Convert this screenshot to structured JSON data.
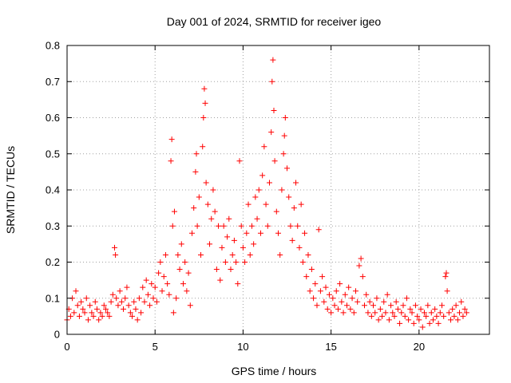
{
  "chart_data": {
    "type": "scatter",
    "title": "Day 001 of 2024, SRMTID for receiver igeo",
    "xlabel": "GPS time / hours",
    "ylabel": "SRMTID / TECUs",
    "xlim": [
      0,
      24
    ],
    "ylim": [
      0,
      0.8
    ],
    "x_ticks": [
      0,
      5,
      10,
      15,
      20
    ],
    "x_tick_labels": [
      "0",
      "5",
      "10",
      "15",
      "20"
    ],
    "y_ticks": [
      0,
      0.1,
      0.2,
      0.3,
      0.4,
      0.5,
      0.6,
      0.7,
      0.8
    ],
    "y_tick_labels": [
      "0",
      "0.1",
      "0.2",
      "0.3",
      "0.4",
      "0.5",
      "0.6",
      "0.7",
      "0.8"
    ],
    "grid": true,
    "marker": "plus",
    "series": [
      {
        "name": "SRMTID",
        "color": "#ff0000",
        "points": [
          [
            0.0,
            0.04
          ],
          [
            0.1,
            0.07
          ],
          [
            0.2,
            0.05
          ],
          [
            0.3,
            0.1
          ],
          [
            0.4,
            0.06
          ],
          [
            0.5,
            0.12
          ],
          [
            0.6,
            0.08
          ],
          [
            0.7,
            0.05
          ],
          [
            0.8,
            0.09
          ],
          [
            0.9,
            0.07
          ],
          [
            1.0,
            0.06
          ],
          [
            1.1,
            0.1
          ],
          [
            1.2,
            0.04
          ],
          [
            1.3,
            0.08
          ],
          [
            1.4,
            0.06
          ],
          [
            1.5,
            0.05
          ],
          [
            1.6,
            0.09
          ],
          [
            1.7,
            0.07
          ],
          [
            1.8,
            0.04
          ],
          [
            1.9,
            0.06
          ],
          [
            2.0,
            0.05
          ],
          [
            2.1,
            0.08
          ],
          [
            2.2,
            0.07
          ],
          [
            2.3,
            0.06
          ],
          [
            2.4,
            0.05
          ],
          [
            2.5,
            0.09
          ],
          [
            2.6,
            0.11
          ],
          [
            2.7,
            0.24
          ],
          [
            2.75,
            0.22
          ],
          [
            2.8,
            0.1
          ],
          [
            2.9,
            0.08
          ],
          [
            3.0,
            0.12
          ],
          [
            3.1,
            0.09
          ],
          [
            3.2,
            0.07
          ],
          [
            3.3,
            0.1
          ],
          [
            3.4,
            0.13
          ],
          [
            3.5,
            0.08
          ],
          [
            3.6,
            0.06
          ],
          [
            3.7,
            0.05
          ],
          [
            3.8,
            0.09
          ],
          [
            3.9,
            0.07
          ],
          [
            4.0,
            0.04
          ],
          [
            4.1,
            0.1
          ],
          [
            4.2,
            0.06
          ],
          [
            4.3,
            0.13
          ],
          [
            4.4,
            0.09
          ],
          [
            4.5,
            0.15
          ],
          [
            4.6,
            0.11
          ],
          [
            4.7,
            0.08
          ],
          [
            4.8,
            0.14
          ],
          [
            4.9,
            0.1
          ],
          [
            5.0,
            0.13
          ],
          [
            5.1,
            0.09
          ],
          [
            5.2,
            0.17
          ],
          [
            5.3,
            0.2
          ],
          [
            5.4,
            0.12
          ],
          [
            5.5,
            0.16
          ],
          [
            5.6,
            0.22
          ],
          [
            5.7,
            0.14
          ],
          [
            5.8,
            0.11
          ],
          [
            5.9,
            0.48
          ],
          [
            5.95,
            0.54
          ],
          [
            6.0,
            0.3
          ],
          [
            6.05,
            0.06
          ],
          [
            6.1,
            0.34
          ],
          [
            6.2,
            0.1
          ],
          [
            6.3,
            0.22
          ],
          [
            6.4,
            0.18
          ],
          [
            6.5,
            0.25
          ],
          [
            6.6,
            0.14
          ],
          [
            6.7,
            0.2
          ],
          [
            6.8,
            0.12
          ],
          [
            6.9,
            0.17
          ],
          [
            7.0,
            0.08
          ],
          [
            7.1,
            0.28
          ],
          [
            7.2,
            0.35
          ],
          [
            7.3,
            0.45
          ],
          [
            7.35,
            0.5
          ],
          [
            7.4,
            0.3
          ],
          [
            7.5,
            0.38
          ],
          [
            7.6,
            0.22
          ],
          [
            7.7,
            0.52
          ],
          [
            7.75,
            0.6
          ],
          [
            7.8,
            0.68
          ],
          [
            7.85,
            0.64
          ],
          [
            7.9,
            0.42
          ],
          [
            8.0,
            0.36
          ],
          [
            8.1,
            0.25
          ],
          [
            8.2,
            0.32
          ],
          [
            8.3,
            0.4
          ],
          [
            8.4,
            0.34
          ],
          [
            8.5,
            0.18
          ],
          [
            8.6,
            0.3
          ],
          [
            8.7,
            0.15
          ],
          [
            8.8,
            0.24
          ],
          [
            8.9,
            0.3
          ],
          [
            9.0,
            0.2
          ],
          [
            9.1,
            0.27
          ],
          [
            9.2,
            0.32
          ],
          [
            9.3,
            0.18
          ],
          [
            9.4,
            0.22
          ],
          [
            9.5,
            0.26
          ],
          [
            9.6,
            0.2
          ],
          [
            9.7,
            0.14
          ],
          [
            9.8,
            0.48
          ],
          [
            9.9,
            0.3
          ],
          [
            10.0,
            0.24
          ],
          [
            10.1,
            0.2
          ],
          [
            10.2,
            0.28
          ],
          [
            10.3,
            0.36
          ],
          [
            10.4,
            0.22
          ],
          [
            10.5,
            0.3
          ],
          [
            10.6,
            0.25
          ],
          [
            10.7,
            0.38
          ],
          [
            10.8,
            0.32
          ],
          [
            10.9,
            0.4
          ],
          [
            11.0,
            0.28
          ],
          [
            11.1,
            0.44
          ],
          [
            11.2,
            0.52
          ],
          [
            11.3,
            0.36
          ],
          [
            11.4,
            0.3
          ],
          [
            11.5,
            0.42
          ],
          [
            11.6,
            0.56
          ],
          [
            11.65,
            0.7
          ],
          [
            11.7,
            0.76
          ],
          [
            11.75,
            0.62
          ],
          [
            11.8,
            0.48
          ],
          [
            11.9,
            0.34
          ],
          [
            12.0,
            0.28
          ],
          [
            12.1,
            0.22
          ],
          [
            12.2,
            0.4
          ],
          [
            12.3,
            0.5
          ],
          [
            12.35,
            0.55
          ],
          [
            12.4,
            0.6
          ],
          [
            12.5,
            0.46
          ],
          [
            12.6,
            0.38
          ],
          [
            12.7,
            0.3
          ],
          [
            12.8,
            0.26
          ],
          [
            12.9,
            0.35
          ],
          [
            13.0,
            0.42
          ],
          [
            13.1,
            0.3
          ],
          [
            13.2,
            0.24
          ],
          [
            13.3,
            0.36
          ],
          [
            13.4,
            0.2
          ],
          [
            13.5,
            0.28
          ],
          [
            13.6,
            0.16
          ],
          [
            13.7,
            0.22
          ],
          [
            13.8,
            0.12
          ],
          [
            13.9,
            0.18
          ],
          [
            14.0,
            0.1
          ],
          [
            14.1,
            0.14
          ],
          [
            14.2,
            0.08
          ],
          [
            14.3,
            0.29
          ],
          [
            14.4,
            0.12
          ],
          [
            14.5,
            0.16
          ],
          [
            14.6,
            0.09
          ],
          [
            14.7,
            0.13
          ],
          [
            14.8,
            0.07
          ],
          [
            14.9,
            0.11
          ],
          [
            15.0,
            0.06
          ],
          [
            15.1,
            0.1
          ],
          [
            15.2,
            0.08
          ],
          [
            15.3,
            0.12
          ],
          [
            15.4,
            0.07
          ],
          [
            15.5,
            0.14
          ],
          [
            15.6,
            0.09
          ],
          [
            15.7,
            0.06
          ],
          [
            15.8,
            0.11
          ],
          [
            15.9,
            0.08
          ],
          [
            16.0,
            0.13
          ],
          [
            16.1,
            0.07
          ],
          [
            16.2,
            0.1
          ],
          [
            16.3,
            0.06
          ],
          [
            16.4,
            0.12
          ],
          [
            16.5,
            0.09
          ],
          [
            16.6,
            0.19
          ],
          [
            16.7,
            0.21
          ],
          [
            16.8,
            0.16
          ],
          [
            16.9,
            0.08
          ],
          [
            17.0,
            0.11
          ],
          [
            17.1,
            0.06
          ],
          [
            17.2,
            0.09
          ],
          [
            17.3,
            0.05
          ],
          [
            17.4,
            0.08
          ],
          [
            17.5,
            0.06
          ],
          [
            17.6,
            0.1
          ],
          [
            17.7,
            0.04
          ],
          [
            17.8,
            0.07
          ],
          [
            17.9,
            0.05
          ],
          [
            18.0,
            0.09
          ],
          [
            18.1,
            0.06
          ],
          [
            18.2,
            0.11
          ],
          [
            18.3,
            0.04
          ],
          [
            18.4,
            0.08
          ],
          [
            18.5,
            0.06
          ],
          [
            18.6,
            0.05
          ],
          [
            18.7,
            0.09
          ],
          [
            18.8,
            0.07
          ],
          [
            18.9,
            0.03
          ],
          [
            19.0,
            0.06
          ],
          [
            19.1,
            0.08
          ],
          [
            19.2,
            0.05
          ],
          [
            19.3,
            0.1
          ],
          [
            19.4,
            0.04
          ],
          [
            19.5,
            0.07
          ],
          [
            19.6,
            0.06
          ],
          [
            19.7,
            0.03
          ],
          [
            19.8,
            0.08
          ],
          [
            19.9,
            0.05
          ],
          [
            20.0,
            0.04
          ],
          [
            20.1,
            0.07
          ],
          [
            20.2,
            0.02
          ],
          [
            20.3,
            0.06
          ],
          [
            20.4,
            0.05
          ],
          [
            20.5,
            0.08
          ],
          [
            20.6,
            0.03
          ],
          [
            20.7,
            0.06
          ],
          [
            20.8,
            0.04
          ],
          [
            20.9,
            0.07
          ],
          [
            21.0,
            0.05
          ],
          [
            21.1,
            0.03
          ],
          [
            21.2,
            0.06
          ],
          [
            21.3,
            0.08
          ],
          [
            21.4,
            0.05
          ],
          [
            21.5,
            0.16
          ],
          [
            21.55,
            0.17
          ],
          [
            21.6,
            0.12
          ],
          [
            21.7,
            0.06
          ],
          [
            21.8,
            0.04
          ],
          [
            21.9,
            0.07
          ],
          [
            22.0,
            0.05
          ],
          [
            22.1,
            0.08
          ],
          [
            22.2,
            0.04
          ],
          [
            22.3,
            0.06
          ],
          [
            22.4,
            0.09
          ],
          [
            22.5,
            0.05
          ],
          [
            22.6,
            0.07
          ],
          [
            22.7,
            0.06
          ]
        ]
      }
    ]
  }
}
